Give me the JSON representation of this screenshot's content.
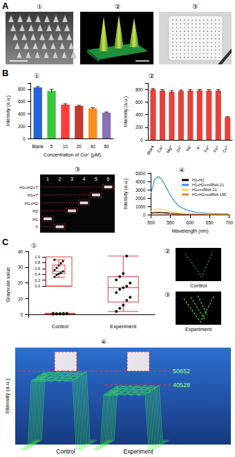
{
  "panels": [
    "A",
    "B",
    "C"
  ],
  "figure_A": {
    "subpanel_labels": [
      "①",
      "②",
      "③"
    ]
  },
  "chart_data": [
    {
      "type": "bar",
      "panel_label": "①",
      "categories": [
        "Blank",
        "5",
        "10",
        "20",
        "40",
        "80"
      ],
      "values": [
        830,
        775,
        550,
        530,
        490,
        420
      ],
      "errors": [
        15,
        25,
        15,
        10,
        10,
        10
      ],
      "colors": [
        "#2563d8",
        "#3cc83c",
        "#ff3b3b",
        "#c43a2e",
        "#ff8c1a",
        "#8a6fb5"
      ],
      "x_label": "Concentration of Cu²⁺ (μM)",
      "y_label": "Intensity (a.u.)",
      "ylim": [
        0,
        900
      ],
      "yticks": [
        0,
        200,
        400,
        600,
        800
      ]
    },
    {
      "type": "bar",
      "panel_label": "②",
      "categories": [
        "Blank",
        "Ca²⁺",
        "Mg²⁺",
        "Zn²⁺",
        "Na⁺",
        "K⁺",
        "Fe²⁺",
        "Fe³⁺",
        "Cu²⁺"
      ],
      "values": [
        800,
        780,
        760,
        775,
        780,
        785,
        780,
        780,
        360
      ],
      "errors": [
        15,
        15,
        20,
        15,
        15,
        15,
        15,
        15,
        10
      ],
      "color": "#e8413b",
      "y_label": "Intensity (a.u.)",
      "ylim": [
        0,
        900
      ],
      "yticks": [
        0,
        200,
        400,
        600,
        800
      ]
    },
    {
      "type": "line",
      "panel_label": "④",
      "x": [
        500,
        510,
        520,
        530,
        540,
        550,
        560,
        570,
        580,
        590,
        600,
        610,
        620,
        630,
        640,
        650,
        660,
        670,
        680,
        690,
        700
      ],
      "series": [
        {
          "name": "H1+H2",
          "color": "#000000",
          "values": [
            200,
            280,
            300,
            270,
            220,
            170,
            140,
            110,
            90,
            80,
            70,
            60,
            55,
            50,
            45,
            40,
            40,
            35,
            35,
            30,
            30
          ]
        },
        {
          "name": "H1+H2+miRNA-21",
          "color": "#2f8fd8",
          "values": [
            2600,
            4300,
            4600,
            4100,
            3200,
            2300,
            1600,
            1100,
            800,
            600,
            450,
            350,
            280,
            230,
            190,
            160,
            140,
            120,
            110,
            100,
            90
          ]
        },
        {
          "name": "H1+miRNA-21",
          "color": "#f0d54a",
          "values": [
            450,
            650,
            700,
            620,
            500,
            380,
            280,
            220,
            170,
            140,
            120,
            100,
            90,
            80,
            70,
            60,
            60,
            50,
            50,
            50,
            50
          ]
        },
        {
          "name": "H1+H2+miRNA-155",
          "color": "#e8823a",
          "values": [
            120,
            170,
            180,
            160,
            130,
            100,
            80,
            70,
            60,
            50,
            45,
            40,
            35,
            30,
            30,
            25,
            25,
            20,
            20,
            20,
            20
          ]
        }
      ],
      "x_label": "Wavelength (nm)",
      "y_label": "Intensity (a.u.)",
      "xlim": [
        500,
        700
      ],
      "xticks": [
        500,
        550,
        600,
        650,
        700
      ],
      "ylim": [
        0,
        5000
      ],
      "yticks": [
        0,
        1000,
        2000,
        3000,
        4000,
        5000
      ],
      "legend": "upper right"
    },
    {
      "type": "box",
      "panel_label": "①",
      "categories": [
        "Control",
        "Experiment"
      ],
      "box": [
        [
          0.3,
          0.42,
          0.5,
          0.72,
          0.9
        ],
        [
          2,
          8,
          17,
          24,
          37
        ]
      ],
      "points": [
        [
          0.32,
          0.38,
          0.42,
          0.45,
          0.5,
          0.55,
          0.62,
          0.7,
          0.78,
          0.85,
          0.9
        ],
        [
          2,
          4,
          6,
          9,
          11,
          14,
          16,
          17,
          18,
          20,
          22,
          24,
          26,
          37
        ]
      ],
      "color": "#e23b3b",
      "y_label": "Grayscale value",
      "ylim": [
        -2,
        40
      ],
      "yticks": [
        0,
        10,
        20,
        30,
        40
      ],
      "inset": {
        "ylim": [
          0,
          1
        ],
        "yticks": [
          {
            "value": 0,
            "label": "0.0"
          },
          {
            "value": 0.2,
            "label": "0.2"
          },
          {
            "value": 0.4,
            "label": "0.4"
          },
          {
            "value": 0.6,
            "label": "0.6"
          },
          {
            "value": 0.8,
            "label": "0.8"
          },
          {
            "value": 1,
            "label": "1.0"
          }
        ]
      }
    }
  ],
  "gel": {
    "panel_label": "③",
    "band_labels": [
      "H1+H2+T",
      "H1+T",
      "H1+H2",
      "H2",
      "H1",
      "T"
    ],
    "lanes": [
      {
        "label": "1",
        "band": "H1"
      },
      {
        "label": "2",
        "band": "T"
      },
      {
        "label": "3",
        "band": "H2"
      },
      {
        "label": "4",
        "band": "H1+H2"
      },
      {
        "label": "5",
        "band": "H1+T"
      },
      {
        "label": "6",
        "band": "H1+H2+T"
      }
    ]
  },
  "images_C": [
    {
      "panel_label": "②",
      "caption": "Control"
    },
    {
      "panel_label": "③",
      "caption": "Experiment"
    }
  ],
  "surface_C": {
    "panel_label": "④",
    "y_label": "Intensity (a.u.)",
    "categories": [
      "Control",
      "Experiment"
    ],
    "values": [
      50652,
      40528
    ]
  }
}
